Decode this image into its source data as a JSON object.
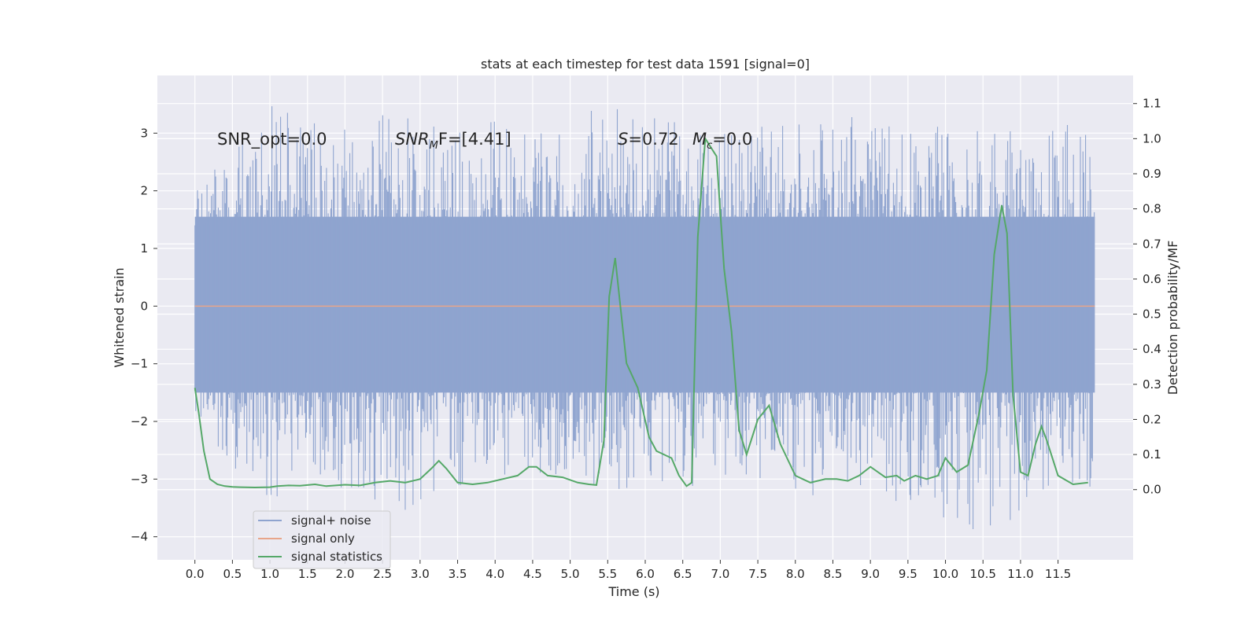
{
  "chart_data": {
    "type": "line",
    "title": "stats at each timestep for test data 1591 [signal=0]",
    "xlabel": "Time (s)",
    "ylabel": "Whitened strain",
    "ylabel_right": "Detection probability/MF",
    "xlim": [
      -0.5,
      12.5
    ],
    "ylim": [
      -4.4,
      4.0
    ],
    "ylim_right": [
      -0.2,
      1.18
    ],
    "x_ticks": [
      "0.0",
      "0.5",
      "1.0",
      "1.5",
      "2.0",
      "2.5",
      "3.0",
      "3.5",
      "4.0",
      "4.5",
      "5.0",
      "5.5",
      "6.0",
      "6.5",
      "7.0",
      "7.5",
      "8.0",
      "8.5",
      "9.0",
      "9.5",
      "10.0",
      "10.5",
      "11.0",
      "11.5"
    ],
    "y_ticks_left": [
      "3",
      "2",
      "1",
      "0",
      "−1",
      "−2",
      "−3",
      "−4"
    ],
    "y_ticks_right": [
      "1.1",
      "1.0",
      "0.9",
      "0.8",
      "0.7",
      "0.6",
      "0.5",
      "0.4",
      "0.3",
      "0.2",
      "0.1",
      "0.0"
    ],
    "grid": true,
    "legend_position": "lower-left",
    "annotations": {
      "snr_opt": "SNR_opt=0.0",
      "snr_mf_main": "SNR",
      "snr_mf_sub": "M",
      "snr_mf_tail": "F=[4.41]",
      "s_var": "S",
      "s_val": "=0.72",
      "mc_var": "M",
      "mc_sub": "c",
      "mc_val": "=0.0"
    },
    "series": [
      {
        "name": "signal+ noise",
        "color": "#8fa4cf",
        "axis": "left",
        "description_x_range": [
          0,
          11.99
        ],
        "envelope_positive": [
          [
            0.0,
            2.3
          ],
          [
            0.5,
            2.8
          ],
          [
            0.75,
            3.2
          ],
          [
            1.0,
            3.5
          ],
          [
            1.5,
            3.2
          ],
          [
            2.0,
            3.2
          ],
          [
            2.5,
            3.6
          ],
          [
            3.0,
            3.1
          ],
          [
            3.5,
            3.2
          ],
          [
            4.0,
            3.2
          ],
          [
            4.5,
            3.0
          ],
          [
            5.0,
            3.0
          ],
          [
            5.2,
            3.5
          ],
          [
            6.0,
            3.4
          ],
          [
            6.5,
            3.2
          ],
          [
            7.0,
            3.3
          ],
          [
            7.5,
            3.1
          ],
          [
            8.0,
            3.2
          ],
          [
            8.5,
            3.4
          ],
          [
            9.0,
            3.2
          ],
          [
            9.5,
            3.2
          ],
          [
            10.0,
            3.1
          ],
          [
            10.5,
            3.2
          ],
          [
            11.0,
            3.0
          ],
          [
            11.5,
            3.2
          ],
          [
            11.99,
            3.0
          ]
        ],
        "envelope_negative": [
          [
            0.0,
            -2.4
          ],
          [
            0.5,
            -2.9
          ],
          [
            0.8,
            -3.55
          ],
          [
            1.0,
            -3.5
          ],
          [
            1.5,
            -3.1
          ],
          [
            2.0,
            -3.2
          ],
          [
            2.8,
            -3.55
          ],
          [
            3.5,
            -3.2
          ],
          [
            4.0,
            -3.1
          ],
          [
            5.0,
            -3.0
          ],
          [
            6.0,
            -3.35
          ],
          [
            7.0,
            -3.0
          ],
          [
            8.2,
            -3.35
          ],
          [
            9.0,
            -3.2
          ],
          [
            9.9,
            -3.7
          ],
          [
            10.5,
            -4.0
          ],
          [
            11.0,
            -4.1
          ],
          [
            11.5,
            -3.1
          ],
          [
            11.99,
            -3.35
          ]
        ]
      },
      {
        "name": "signal only",
        "color": "#e8a58a",
        "axis": "left",
        "x": [
          0.0,
          11.99
        ],
        "y": [
          0.0,
          0.0
        ]
      },
      {
        "name": "signal statistics",
        "color": "#55a868",
        "axis": "right",
        "x": [
          0.0,
          0.05,
          0.12,
          0.2,
          0.3,
          0.4,
          0.5,
          0.6,
          0.8,
          1.0,
          1.1,
          1.25,
          1.4,
          1.6,
          1.75,
          2.0,
          2.2,
          2.4,
          2.6,
          2.8,
          3.0,
          3.15,
          3.25,
          3.35,
          3.5,
          3.7,
          3.9,
          4.1,
          4.3,
          4.45,
          4.55,
          4.7,
          4.9,
          5.1,
          5.25,
          5.35,
          5.45,
          5.52,
          5.6,
          5.75,
          5.9,
          6.05,
          6.15,
          6.25,
          6.35,
          6.45,
          6.55,
          6.62,
          6.7,
          6.8,
          6.95,
          7.05,
          7.15,
          7.25,
          7.35,
          7.5,
          7.65,
          7.8,
          8.0,
          8.2,
          8.4,
          8.55,
          8.7,
          8.85,
          9.0,
          9.2,
          9.35,
          9.45,
          9.6,
          9.75,
          9.9,
          10.0,
          10.15,
          10.3,
          10.45,
          10.55,
          10.65,
          10.75,
          10.82,
          10.9,
          11.0,
          11.1,
          11.2,
          11.28,
          11.35,
          11.5,
          11.7,
          11.9
        ],
        "y": [
          0.29,
          0.22,
          0.11,
          0.03,
          0.015,
          0.01,
          0.008,
          0.007,
          0.006,
          0.007,
          0.01,
          0.012,
          0.011,
          0.015,
          0.01,
          0.014,
          0.012,
          0.02,
          0.025,
          0.02,
          0.03,
          0.06,
          0.082,
          0.06,
          0.02,
          0.015,
          0.02,
          0.03,
          0.04,
          0.065,
          0.065,
          0.04,
          0.035,
          0.02,
          0.015,
          0.013,
          0.14,
          0.55,
          0.66,
          0.36,
          0.29,
          0.15,
          0.11,
          0.1,
          0.09,
          0.04,
          0.01,
          0.02,
          0.72,
          1.0,
          0.95,
          0.63,
          0.45,
          0.17,
          0.1,
          0.2,
          0.24,
          0.13,
          0.04,
          0.02,
          0.03,
          0.03,
          0.025,
          0.04,
          0.065,
          0.035,
          0.04,
          0.025,
          0.04,
          0.03,
          0.04,
          0.09,
          0.05,
          0.07,
          0.22,
          0.34,
          0.67,
          0.81,
          0.73,
          0.27,
          0.05,
          0.04,
          0.13,
          0.18,
          0.14,
          0.04,
          0.015,
          0.02
        ]
      }
    ]
  }
}
